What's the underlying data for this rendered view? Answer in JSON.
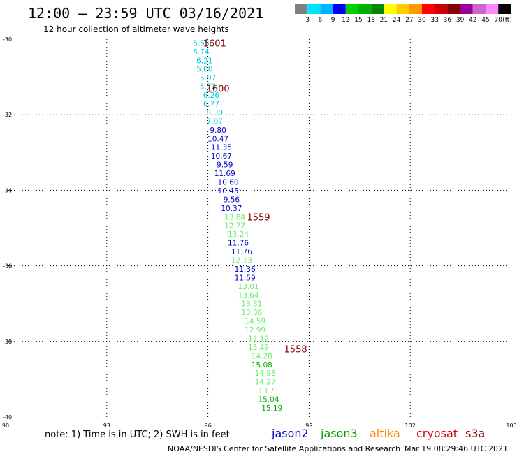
{
  "header": {
    "title": "12:00 – 23:59 UTC 03/16/2021",
    "subtitle": "12 hour collection of altimeter wave heights"
  },
  "colorbar": {
    "colors": [
      "#808080",
      "#00e5ff",
      "#00b4ff",
      "#0000ff",
      "#00d000",
      "#00b000",
      "#008800",
      "#ffff00",
      "#ffcc00",
      "#ff9900",
      "#ff0000",
      "#cc0000",
      "#880000",
      "#990099",
      "#cc66cc",
      "#ff88ff",
      "#000000"
    ],
    "labels": [
      "3",
      "6",
      "9",
      "12",
      "15",
      "18",
      "21",
      "24",
      "27",
      "30",
      "33",
      "36",
      "39",
      "42",
      "45",
      "70"
    ],
    "unit": "(ft)"
  },
  "footer": {
    "note": "note: 1) Time is in UTC; 2) SWH is in feet",
    "credit": "NOAA/NESDIS Center for Satellite Applications and Research",
    "timestamp": "Mar 19 08:29:46 UTC 2021",
    "satellites": [
      {
        "name": "jason2",
        "color": "#0000cc"
      },
      {
        "name": "jason3",
        "color": "#009900"
      },
      {
        "name": "altika",
        "color": "#ff8800"
      },
      {
        "name": "cryosat",
        "color": "#dd0000"
      },
      {
        "name": "s3a",
        "color": "#880000"
      }
    ]
  },
  "chart_data": {
    "type": "scatter",
    "xlim": [
      90,
      105
    ],
    "ylim": [
      -40,
      -30
    ],
    "x_ticks": [
      "90",
      "93",
      "96",
      "99",
      "102",
      "105"
    ],
    "y_ticks": [
      "-30",
      "-32",
      "-34",
      "-36",
      "-38",
      "-40"
    ],
    "grid": true,
    "points": [
      {
        "lon": 95.8,
        "lat": -30.1,
        "label": "5.55",
        "color": "#00ccdd"
      },
      {
        "lon": 95.8,
        "lat": -30.33,
        "label": "5.74",
        "color": "#00ccdd"
      },
      {
        "lon": 95.9,
        "lat": -30.56,
        "label": "6.21",
        "color": "#00ccdd"
      },
      {
        "lon": 95.9,
        "lat": -30.79,
        "label": "5.00",
        "color": "#00ccdd"
      },
      {
        "lon": 96.0,
        "lat": -31.02,
        "label": "5.97",
        "color": "#00ccdd"
      },
      {
        "lon": 96.0,
        "lat": -31.25,
        "label": "5.73",
        "color": "#00ccdd"
      },
      {
        "lon": 96.1,
        "lat": -31.48,
        "label": "6.26",
        "color": "#00ccdd"
      },
      {
        "lon": 96.1,
        "lat": -31.71,
        "label": "6.77",
        "color": "#00ccdd"
      },
      {
        "lon": 96.2,
        "lat": -31.94,
        "label": "8.30",
        "color": "#00ccdd"
      },
      {
        "lon": 96.2,
        "lat": -32.17,
        "label": "7.97",
        "color": "#00ccdd"
      },
      {
        "lon": 96.3,
        "lat": -32.4,
        "label": "9.80",
        "color": "#0000cc"
      },
      {
        "lon": 96.3,
        "lat": -32.63,
        "label": "10.47",
        "color": "#0000cc"
      },
      {
        "lon": 96.4,
        "lat": -32.86,
        "label": "11.35",
        "color": "#0000cc"
      },
      {
        "lon": 96.4,
        "lat": -33.09,
        "label": "10.67",
        "color": "#0000cc"
      },
      {
        "lon": 96.5,
        "lat": -33.32,
        "label": "9.59",
        "color": "#0000cc"
      },
      {
        "lon": 96.5,
        "lat": -33.55,
        "label": "11.69",
        "color": "#0000cc"
      },
      {
        "lon": 96.6,
        "lat": -33.78,
        "label": "10.60",
        "color": "#0000cc"
      },
      {
        "lon": 96.6,
        "lat": -34.01,
        "label": "10.45",
        "color": "#0000cc"
      },
      {
        "lon": 96.7,
        "lat": -34.24,
        "label": "9.56",
        "color": "#0000cc"
      },
      {
        "lon": 96.7,
        "lat": -34.47,
        "label": "10.37",
        "color": "#0000cc"
      },
      {
        "lon": 96.8,
        "lat": -34.7,
        "label": "13.84",
        "color": "#66ee66"
      },
      {
        "lon": 96.8,
        "lat": -34.93,
        "label": "12.77",
        "color": "#66ee66"
      },
      {
        "lon": 96.9,
        "lat": -35.16,
        "label": "13.24",
        "color": "#66ee66"
      },
      {
        "lon": 96.9,
        "lat": -35.39,
        "label": "11.76",
        "color": "#0000cc"
      },
      {
        "lon": 97.0,
        "lat": -35.62,
        "label": "11.76",
        "color": "#0000cc"
      },
      {
        "lon": 97.0,
        "lat": -35.85,
        "label": "12.13",
        "color": "#66ee66"
      },
      {
        "lon": 97.1,
        "lat": -36.08,
        "label": "11.36",
        "color": "#0000cc"
      },
      {
        "lon": 97.1,
        "lat": -36.31,
        "label": "11.59",
        "color": "#0000cc"
      },
      {
        "lon": 97.2,
        "lat": -36.54,
        "label": "13.01",
        "color": "#66ee66"
      },
      {
        "lon": 97.2,
        "lat": -36.77,
        "label": "13.64",
        "color": "#66ee66"
      },
      {
        "lon": 97.3,
        "lat": -37.0,
        "label": "13.31",
        "color": "#66ee66"
      },
      {
        "lon": 97.3,
        "lat": -37.23,
        "label": "13.86",
        "color": "#66ee66"
      },
      {
        "lon": 97.4,
        "lat": -37.46,
        "label": "14.59",
        "color": "#66ee66"
      },
      {
        "lon": 97.4,
        "lat": -37.69,
        "label": "12.99",
        "color": "#66ee66"
      },
      {
        "lon": 97.5,
        "lat": -37.92,
        "label": "14.12",
        "color": "#66ee66"
      },
      {
        "lon": 97.5,
        "lat": -38.15,
        "label": "13.49",
        "color": "#66ee66"
      },
      {
        "lon": 97.6,
        "lat": -38.38,
        "label": "14.28",
        "color": "#66ee66"
      },
      {
        "lon": 97.6,
        "lat": -38.61,
        "label": "15.08",
        "color": "#00aa00"
      },
      {
        "lon": 97.7,
        "lat": -38.84,
        "label": "14.98",
        "color": "#66ee66"
      },
      {
        "lon": 97.7,
        "lat": -39.07,
        "label": "14.27",
        "color": "#66ee66"
      },
      {
        "lon": 97.8,
        "lat": -39.3,
        "label": "13.71",
        "color": "#66ee66"
      },
      {
        "lon": 97.8,
        "lat": -39.53,
        "label": "15.04",
        "color": "#00aa00"
      },
      {
        "lon": 97.9,
        "lat": -39.76,
        "label": "15.19",
        "color": "#00aa00"
      }
    ],
    "time_labels": [
      {
        "lon": 96.2,
        "lat": -30.1,
        "label": "1601",
        "color": "#880000"
      },
      {
        "lon": 96.3,
        "lat": -31.3,
        "label": "1600",
        "color": "#880000"
      },
      {
        "lon": 97.5,
        "lat": -34.7,
        "label": "1559",
        "color": "#880000"
      },
      {
        "lon": 98.6,
        "lat": -38.2,
        "label": "1558",
        "color": "#880000"
      }
    ]
  }
}
